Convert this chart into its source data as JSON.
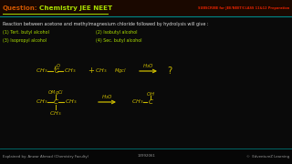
{
  "bg_color": "#0a0a0a",
  "header_bg": "#1a0a00",
  "header_left_text": "Question:",
  "header_left_color": "#cc5500",
  "header_right_text": "Chemistry JEE NEET",
  "header_right_color": "#aadd00",
  "subscribe_text": "SUBSCRIBE for JEE/NEET/CLASS 11&12 Preparation",
  "subscribe_color": "#dd2200",
  "question_text": "Reaction between acetone and methylmagnesium chloride followed by hydrolysis will give :",
  "question_color": "#dddddd",
  "options": [
    "(1) Tert. butyl alcohol",
    "(2) Isobutyl alcohol",
    "(3) Isopropyl alcohol",
    "(4) Sec. butyl alcohol"
  ],
  "options_color": "#aadd00",
  "footer_text_left": "Explained by: Anwar Ahmad (Chemistry Faculty)",
  "footer_text_mid": "13992061",
  "footer_text_right": "©  EdventureZ Learning",
  "footer_color": "#999999",
  "footer_bg": "#050505",
  "reaction_color": "#ccbb00",
  "header_sep_color": "#008888",
  "footer_sep_color": "#006666",
  "underline_color": "#aadd00"
}
